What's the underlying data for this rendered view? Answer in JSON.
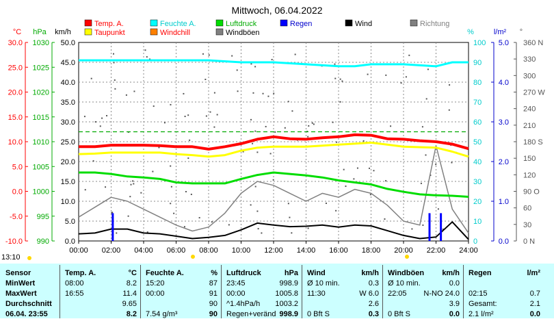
{
  "chart_data": {
    "type": "line",
    "title": "Mittwoch, 06.04.2022",
    "x_ticks": [
      "00:00",
      "02:00",
      "04:00",
      "06:00",
      "08:00",
      "10:00",
      "12:00",
      "14:00",
      "16:00",
      "18:00",
      "20:00",
      "22:00",
      "24:00"
    ],
    "x_range": [
      0,
      24
    ],
    "grid": true,
    "axes": {
      "temp": {
        "unit": "°C",
        "ticks": [
          "30.0",
          "25.0",
          "20.0",
          "15.0",
          "10.0",
          "5.0",
          "0.0",
          "-5.0",
          "-10.0"
        ],
        "range": [
          -10,
          30
        ]
      },
      "pressure": {
        "unit": "hPa",
        "ticks": [
          "1030",
          "1025",
          "1020",
          "1015",
          "1010",
          "1005",
          "1000",
          "995",
          "990"
        ],
        "range": [
          990,
          1030
        ]
      },
      "wind": {
        "unit": "km/h",
        "ticks": [
          "50.0",
          "45.0",
          "40.0",
          "35.0",
          "30.0",
          "25.0",
          "20.0",
          "15.0",
          "10.0",
          "5.0",
          "0.0"
        ],
        "range": [
          0,
          50
        ]
      },
      "humidity": {
        "unit": "%",
        "ticks": [
          "100",
          "90",
          "80",
          "70",
          "60",
          "50",
          "40",
          "30",
          "20",
          "10",
          "0"
        ],
        "range": [
          0,
          100
        ]
      },
      "rain": {
        "unit": "l/m²",
        "ticks": [
          "5.0",
          "4.0",
          "3.0",
          "2.0",
          "1.0",
          "0.0"
        ],
        "range": [
          0,
          5
        ]
      },
      "direction": {
        "unit": "°",
        "ticks": [
          "360 N",
          "330",
          "300",
          "270 W",
          "240",
          "210",
          "180 S",
          "150",
          "120",
          "90 O",
          "60",
          "30",
          "0 N"
        ],
        "range": [
          0,
          360
        ]
      }
    },
    "legend": [
      {
        "name": "Temp. A.",
        "color": "#ff0000"
      },
      {
        "name": "Feuchte A.",
        "color": "#00ffff"
      },
      {
        "name": "Luftdruck",
        "color": "#00dd00"
      },
      {
        "name": "Regen",
        "color": "#0000ff"
      },
      {
        "name": "Wind",
        "color": "#000000"
      },
      {
        "name": "Richtung",
        "color": "#808080"
      },
      {
        "name": "Taupunkt",
        "color": "#ffff00"
      },
      {
        "name": "Windchill",
        "color": "#ff8000"
      },
      {
        "name": "Windböen",
        "color": "#808080"
      }
    ],
    "series": [
      {
        "name": "Temp. A.",
        "axis": "temp",
        "color": "#ff0000",
        "x": [
          0,
          1,
          2,
          3,
          4,
          5,
          6,
          7,
          8,
          9,
          10,
          11,
          12,
          13,
          14,
          15,
          16,
          17,
          18,
          19,
          20,
          21,
          22,
          23,
          24
        ],
        "y": [
          9.0,
          9.0,
          9.3,
          9.3,
          9.3,
          9.2,
          9.0,
          9.0,
          8.5,
          9.0,
          9.6,
          10.5,
          11.0,
          10.6,
          10.5,
          10.8,
          11.0,
          11.4,
          11.3,
          10.6,
          10.5,
          10.2,
          10.0,
          9.5,
          8.6
        ]
      },
      {
        "name": "Taupunkt",
        "axis": "temp",
        "color": "#ffff00",
        "x": [
          0,
          1,
          2,
          3,
          4,
          5,
          6,
          7,
          8,
          9,
          10,
          11,
          12,
          13,
          14,
          15,
          16,
          17,
          18,
          19,
          20,
          21,
          22,
          23,
          24
        ],
        "y": [
          7.5,
          7.6,
          7.8,
          7.8,
          7.8,
          7.8,
          7.5,
          7.3,
          7.0,
          7.3,
          8.2,
          8.8,
          9.0,
          9.0,
          9.0,
          9.2,
          9.4,
          9.6,
          9.8,
          9.4,
          9.0,
          8.9,
          8.8,
          8.0,
          7.0
        ]
      },
      {
        "name": "Feuchte A.",
        "axis": "humidity",
        "color": "#00ffff",
        "x": [
          0,
          2,
          4,
          6,
          8,
          10,
          12,
          14,
          16,
          17,
          18,
          20,
          22,
          23,
          24
        ],
        "y": [
          91,
          91,
          91,
          91,
          91,
          90,
          90,
          89,
          88,
          88,
          89,
          89,
          88,
          90,
          90
        ]
      },
      {
        "name": "Luftdruck",
        "axis": "pressure",
        "color": "#00dd00",
        "x": [
          0,
          1,
          2,
          3,
          4,
          5,
          6,
          7,
          8,
          9,
          10,
          11,
          12,
          13,
          14,
          15,
          16,
          17,
          18,
          19,
          20,
          21,
          22,
          23,
          24
        ],
        "y": [
          1003.8,
          1003.8,
          1003.5,
          1003.0,
          1002.8,
          1002.5,
          1001.8,
          1001.6,
          1001.6,
          1001.6,
          1002.5,
          1003.3,
          1003.8,
          1003.5,
          1003.2,
          1002.8,
          1002.2,
          1001.8,
          1001.4,
          1000.5,
          999.9,
          999.4,
          999.2,
          999.1,
          998.9
        ]
      },
      {
        "name": "Wind",
        "axis": "wind",
        "color": "#000000",
        "x": [
          0,
          1,
          2,
          3,
          4,
          5,
          6,
          7,
          8,
          9,
          10,
          11,
          12,
          13,
          14,
          15,
          16,
          17,
          18,
          19,
          20,
          21,
          22,
          23,
          24
        ],
        "y": [
          1.8,
          2.0,
          3.0,
          3.0,
          2.0,
          1.8,
          1.2,
          0.6,
          0.9,
          1.4,
          2.8,
          4.5,
          4.0,
          3.6,
          3.7,
          4.0,
          3.5,
          4.0,
          3.8,
          2.6,
          1.4,
          0.6,
          1.0,
          4.8,
          0.4
        ]
      },
      {
        "name": "Windböen",
        "axis": "wind",
        "color": "#808080",
        "x": [
          0,
          1,
          2,
          3,
          4,
          5,
          6,
          7,
          8,
          9,
          10,
          11,
          12,
          13,
          14,
          15,
          16,
          17,
          18,
          19,
          20,
          21,
          22,
          23,
          24
        ],
        "y": [
          6.0,
          8.5,
          11.0,
          10.0,
          8.0,
          6.0,
          4.0,
          2.5,
          3.5,
          7.0,
          12.0,
          15.0,
          14.0,
          12.0,
          10.0,
          12.0,
          11.0,
          13.0,
          12.0,
          9.0,
          5.0,
          4.0,
          24.0,
          8.0,
          2.0
        ]
      },
      {
        "name": "Regen",
        "axis": "rain",
        "color": "#0000ff",
        "type": "bar",
        "x": [
          2.1,
          21.6,
          22.3
        ],
        "y": [
          0.7,
          0.7,
          0.7
        ]
      }
    ],
    "reference_lines": [
      {
        "axis": "temp",
        "value": 12.0,
        "color": "#00aa00",
        "style": "dashed"
      }
    ]
  },
  "time_label": "13:10",
  "stats": {
    "row_labels": [
      "Sensor",
      "MinWert",
      "MaxWert",
      "Durchschnitt",
      "06.04. 23:55"
    ],
    "temp": {
      "header": "Temp. A.",
      "unit": "°C",
      "rows": [
        [
          "08:00",
          "8.2"
        ],
        [
          "16:55",
          "11.4"
        ],
        [
          "",
          "9.65"
        ],
        [
          "",
          "8.2"
        ]
      ]
    },
    "humidity": {
      "header": "Feuchte A.",
      "unit": "%",
      "rows": [
        [
          "15:20",
          "87"
        ],
        [
          "00:00",
          "91"
        ],
        [
          "",
          "90"
        ],
        [
          "7.54 g/m³",
          "90"
        ]
      ]
    },
    "pressure": {
      "header": "Luftdruck",
      "unit": "hPa",
      "rows": [
        [
          "23:45",
          "998.9"
        ],
        [
          "00:00",
          "1005.8"
        ],
        [
          "^1.4hPa/h",
          "1003.2"
        ],
        [
          "Regen+veränd",
          "998.9"
        ]
      ]
    },
    "wind": {
      "header": "Wind",
      "unit": "km/h",
      "rows": [
        [
          "Ø 10 min.",
          "0.3"
        ],
        [
          "11:30",
          "W 6.0"
        ],
        [
          "",
          "2.6"
        ],
        [
          "0 Bft S",
          "0.3"
        ]
      ]
    },
    "gusts": {
      "header": "Windböen",
      "unit": "km/h",
      "rows": [
        [
          "Ø 10 min.",
          "0.0"
        ],
        [
          "22:05",
          "N-NO 24.0"
        ],
        [
          "",
          "3.9"
        ],
        [
          "0 Bft S",
          "0.0"
        ]
      ]
    },
    "rain": {
      "header": "Regen",
      "unit": "l/m²",
      "rows": [
        [
          "",
          ""
        ],
        [
          "02:15",
          "0.7"
        ],
        [
          "Gesamt:",
          "2.1"
        ],
        [
          "2.1 l/m²",
          "0.0"
        ]
      ]
    }
  }
}
